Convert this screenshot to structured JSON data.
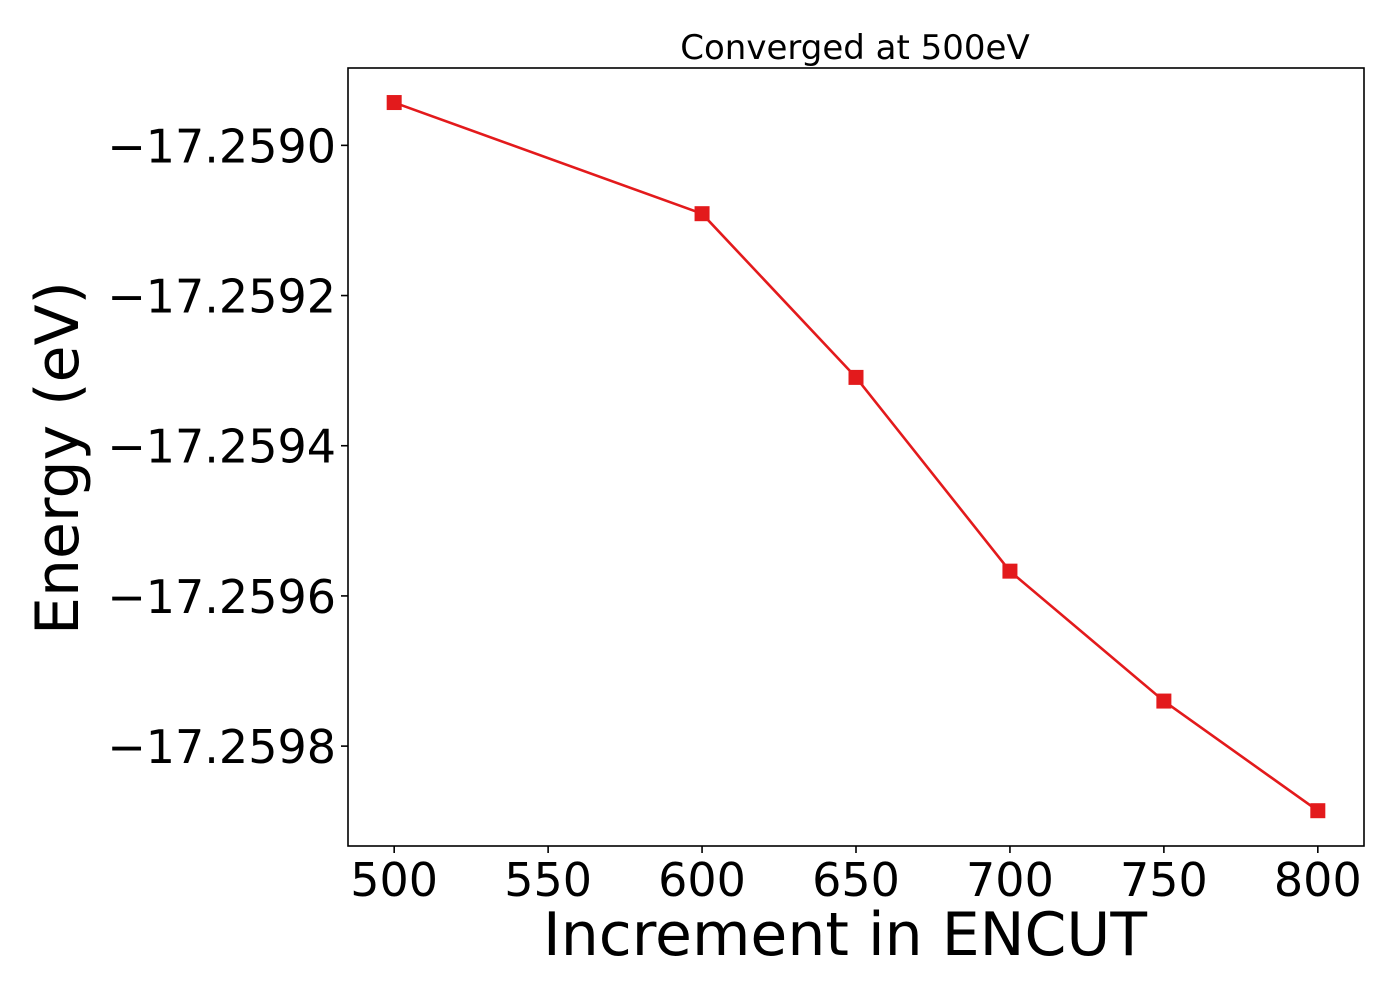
{
  "chart_data": {
    "type": "line",
    "title": "Converged at 500eV",
    "xlabel": "Increment in ENCUT",
    "ylabel": "Energy (eV)",
    "x": [
      500,
      600,
      650,
      700,
      750,
      800
    ],
    "series": [
      {
        "values": [
          -17.258943,
          -17.259091,
          -17.259309,
          -17.259567,
          -17.25974,
          -17.259886
        ],
        "color": "#e31a1c",
        "marker": "square"
      }
    ],
    "xlim": [
      485,
      815
    ],
    "ylim": [
      -17.259933,
      -17.258897
    ],
    "xticks": [
      500,
      550,
      600,
      650,
      700,
      750,
      800
    ],
    "xtick_labels": [
      "500",
      "550",
      "600",
      "650",
      "700",
      "750",
      "800"
    ],
    "yticks": [
      -17.259,
      -17.2592,
      -17.2594,
      -17.2596,
      -17.2598
    ],
    "ytick_labels": [
      "−17.2590",
      "−17.2592",
      "−17.2594",
      "−17.2596",
      "−17.2598"
    ],
    "grid": false,
    "legend": "none"
  }
}
